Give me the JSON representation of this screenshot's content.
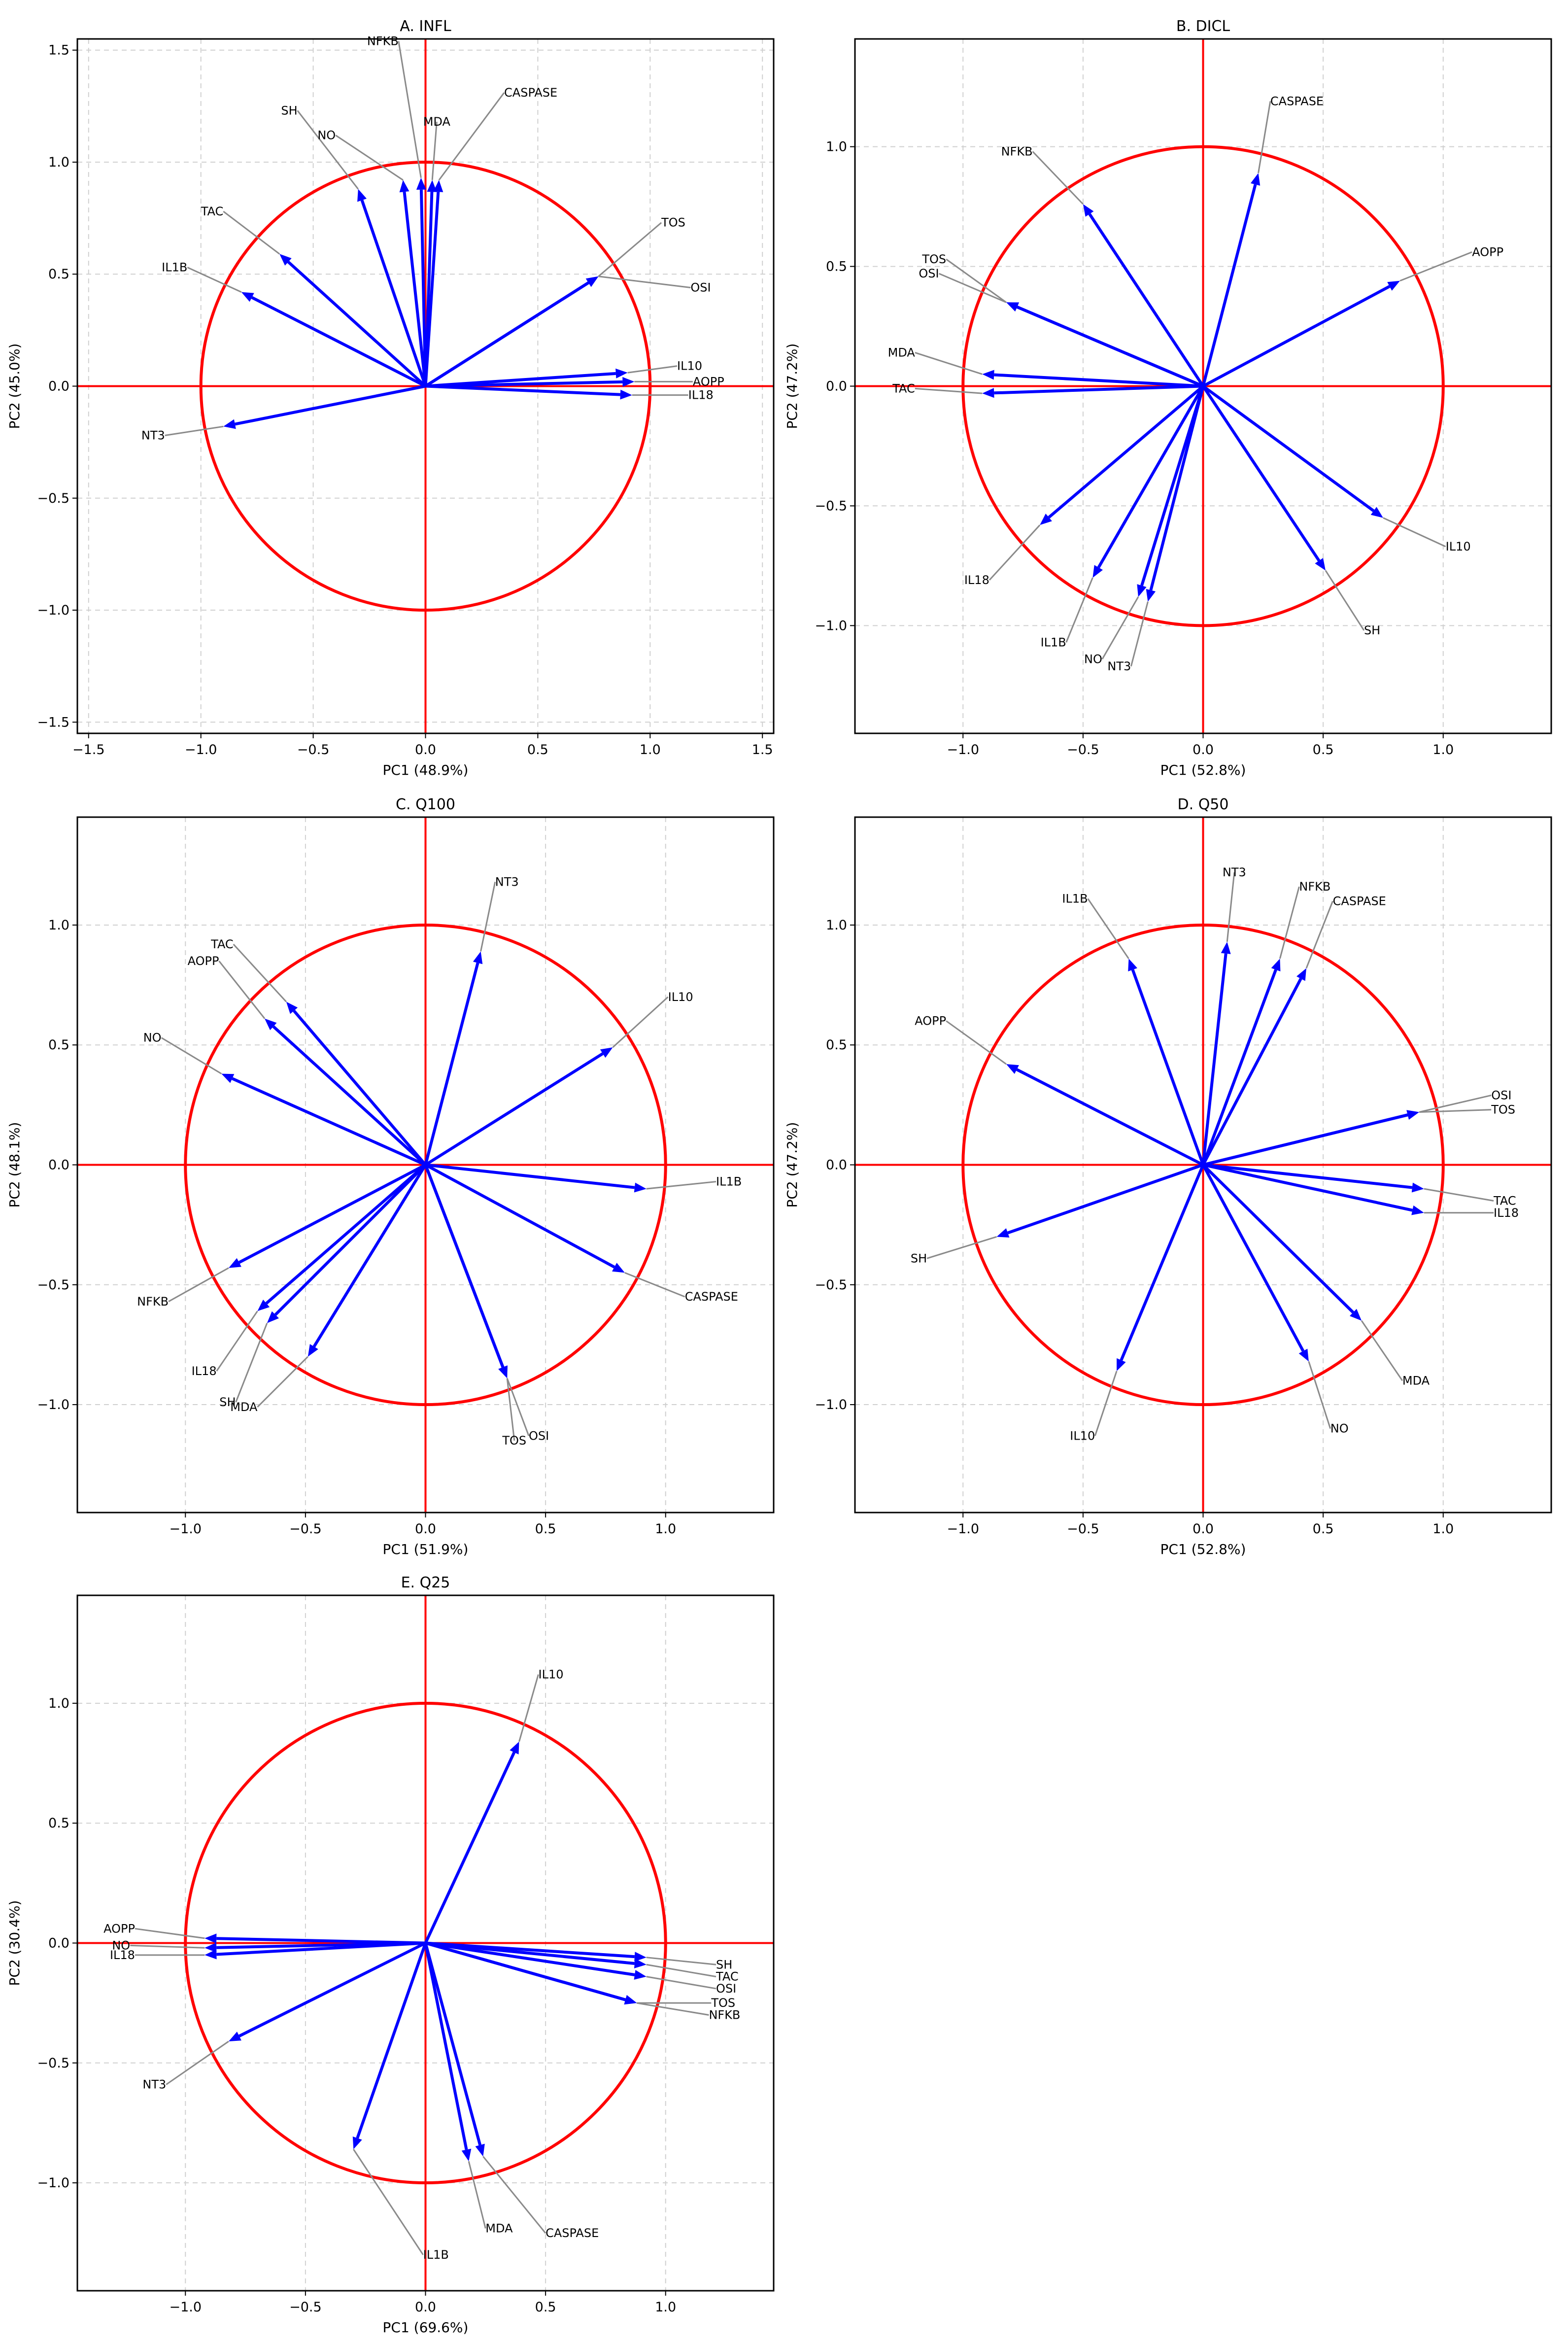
{
  "chart_data": [
    {
      "type": "scatter",
      "title": "A. INFL",
      "xlabel": "PC1 (48.9%)",
      "ylabel": "PC2 (45.0%)",
      "xlim": [
        -1.55,
        1.55
      ],
      "ylim": [
        -1.55,
        1.55
      ],
      "xticks": [
        -1.5,
        -1.0,
        -0.5,
        0.0,
        0.5,
        1.0,
        1.5
      ],
      "yticks": [
        -1.5,
        -1.0,
        -0.5,
        0.0,
        0.5,
        1.0,
        1.5
      ],
      "grid": true,
      "loadings": [
        {
          "name": "NFKB",
          "x": -0.02,
          "y": 0.93,
          "lx": -0.12,
          "ly": 1.54
        },
        {
          "name": "MDA",
          "x": 0.03,
          "y": 0.92,
          "lx": 0.05,
          "ly": 1.18
        },
        {
          "name": "CASPASE",
          "x": 0.06,
          "y": 0.92,
          "lx": 0.35,
          "ly": 1.31
        },
        {
          "name": "SH",
          "x": -0.3,
          "y": 0.88,
          "lx": -0.57,
          "ly": 1.23
        },
        {
          "name": "NO",
          "x": -0.1,
          "y": 0.92,
          "lx": -0.4,
          "ly": 1.12
        },
        {
          "name": "TAC",
          "x": -0.65,
          "y": 0.59,
          "lx": -0.9,
          "ly": 0.78
        },
        {
          "name": "IL1B",
          "x": -0.82,
          "y": 0.42,
          "lx": -1.06,
          "ly": 0.53
        },
        {
          "name": "TOS",
          "x": 0.77,
          "y": 0.49,
          "lx": 1.05,
          "ly": 0.73
        },
        {
          "name": "OSI",
          "x": 0.77,
          "y": 0.49,
          "lx": 1.18,
          "ly": 0.44
        },
        {
          "name": "IL10",
          "x": 0.9,
          "y": 0.06,
          "lx": 1.12,
          "ly": 0.09
        },
        {
          "name": "AOPP",
          "x": 0.93,
          "y": 0.02,
          "lx": 1.19,
          "ly": 0.02
        },
        {
          "name": "IL18",
          "x": 0.92,
          "y": -0.04,
          "lx": 1.17,
          "ly": -0.04
        },
        {
          "name": "NT3",
          "x": -0.9,
          "y": -0.18,
          "lx": -1.16,
          "ly": -0.22
        }
      ]
    },
    {
      "type": "scatter",
      "title": "B. DICL",
      "xlabel": "PC1 (52.8%)",
      "ylabel": "PC2 (47.2%)",
      "xlim": [
        -1.45,
        1.45
      ],
      "ylim": [
        -1.45,
        1.45
      ],
      "xticks": [
        -1.0,
        -0.5,
        0.0,
        0.5,
        1.0
      ],
      "yticks": [
        -1.0,
        -0.5,
        0.0,
        0.5,
        1.0
      ],
      "grid": true,
      "loadings": [
        {
          "name": "CASPASE",
          "x": 0.23,
          "y": 0.89,
          "lx": 0.28,
          "ly": 1.19
        },
        {
          "name": "NFKB",
          "x": -0.5,
          "y": 0.76,
          "lx": -0.71,
          "ly": 0.98
        },
        {
          "name": "AOPP",
          "x": 0.82,
          "y": 0.44,
          "lx": 1.12,
          "ly": 0.56
        },
        {
          "name": "TOS",
          "x": -0.82,
          "y": 0.35,
          "lx": -1.07,
          "ly": 0.53
        },
        {
          "name": "OSI",
          "x": -0.82,
          "y": 0.35,
          "lx": -1.1,
          "ly": 0.47
        },
        {
          "name": "MDA",
          "x": -0.92,
          "y": 0.05,
          "lx": -1.2,
          "ly": 0.14
        },
        {
          "name": "TAC",
          "x": -0.92,
          "y": -0.03,
          "lx": -1.2,
          "ly": -0.01
        },
        {
          "name": "IL10",
          "x": 0.75,
          "y": -0.55,
          "lx": 1.01,
          "ly": -0.67
        },
        {
          "name": "SH",
          "x": 0.51,
          "y": -0.77,
          "lx": 0.67,
          "ly": -1.02
        },
        {
          "name": "IL18",
          "x": -0.68,
          "y": -0.58,
          "lx": -0.89,
          "ly": -0.81
        },
        {
          "name": "IL1B",
          "x": -0.46,
          "y": -0.8,
          "lx": -0.57,
          "ly": -1.07
        },
        {
          "name": "NO",
          "x": -0.27,
          "y": -0.88,
          "lx": -0.42,
          "ly": -1.14
        },
        {
          "name": "NT3",
          "x": -0.23,
          "y": -0.9,
          "lx": -0.3,
          "ly": -1.17
        }
      ]
    },
    {
      "type": "scatter",
      "title": "C. Q100",
      "xlabel": "PC1 (51.9%)",
      "ylabel": "PC2 (48.1%)",
      "xlim": [
        -1.45,
        1.45
      ],
      "ylim": [
        -1.45,
        1.45
      ],
      "xticks": [
        -1.0,
        -0.5,
        0.0,
        0.5,
        1.0
      ],
      "yticks": [
        -1.0,
        -0.5,
        0.0,
        0.5,
        1.0
      ],
      "grid": true,
      "loadings": [
        {
          "name": "NT3",
          "x": 0.23,
          "y": 0.89,
          "lx": 0.29,
          "ly": 1.18
        },
        {
          "name": "TAC",
          "x": -0.58,
          "y": 0.68,
          "lx": -0.8,
          "ly": 0.92
        },
        {
          "name": "AOPP",
          "x": -0.67,
          "y": 0.61,
          "lx": -0.86,
          "ly": 0.85
        },
        {
          "name": "IL10",
          "x": 0.78,
          "y": 0.49,
          "lx": 1.01,
          "ly": 0.7
        },
        {
          "name": "NO",
          "x": -0.85,
          "y": 0.38,
          "lx": -1.1,
          "ly": 0.53
        },
        {
          "name": "IL1B",
          "x": 0.92,
          "y": -0.1,
          "lx": 1.21,
          "ly": -0.07
        },
        {
          "name": "CASPASE",
          "x": 0.83,
          "y": -0.45,
          "lx": 1.08,
          "ly": -0.55
        },
        {
          "name": "NFKB",
          "x": -0.82,
          "y": -0.43,
          "lx": -1.07,
          "ly": -0.57
        },
        {
          "name": "IL18",
          "x": -0.7,
          "y": -0.61,
          "lx": -0.87,
          "ly": -0.86
        },
        {
          "name": "SH",
          "x": -0.66,
          "y": -0.66,
          "lx": -0.79,
          "ly": -0.99
        },
        {
          "name": "MDA",
          "x": -0.49,
          "y": -0.8,
          "lx": -0.7,
          "ly": -1.01
        },
        {
          "name": "TOS",
          "x": 0.34,
          "y": -0.89,
          "lx": 0.37,
          "ly": -1.15
        },
        {
          "name": "OSI",
          "x": 0.34,
          "y": -0.89,
          "lx": 0.43,
          "ly": -1.13
        }
      ]
    },
    {
      "type": "scatter",
      "title": "D. Q50",
      "xlabel": "PC1 (52.8%)",
      "ylabel": "PC2 (47.2%)",
      "xlim": [
        -1.45,
        1.45
      ],
      "ylim": [
        -1.45,
        1.45
      ],
      "xticks": [
        -1.0,
        -0.5,
        0.0,
        0.5,
        1.0
      ],
      "yticks": [
        -1.0,
        -0.5,
        0.0,
        0.5,
        1.0
      ],
      "grid": true,
      "loadings": [
        {
          "name": "NT3",
          "x": 0.1,
          "y": 0.93,
          "lx": 0.13,
          "ly": 1.22
        },
        {
          "name": "NFKB",
          "x": 0.32,
          "y": 0.86,
          "lx": 0.4,
          "ly": 1.16
        },
        {
          "name": "CASPASE",
          "x": 0.43,
          "y": 0.82,
          "lx": 0.54,
          "ly": 1.1
        },
        {
          "name": "IL1B",
          "x": -0.31,
          "y": 0.86,
          "lx": -0.48,
          "ly": 1.11
        },
        {
          "name": "AOPP",
          "x": -0.82,
          "y": 0.42,
          "lx": -1.07,
          "ly": 0.6
        },
        {
          "name": "OSI",
          "x": 0.9,
          "y": 0.22,
          "lx": 1.2,
          "ly": 0.29
        },
        {
          "name": "TOS",
          "x": 0.9,
          "y": 0.22,
          "lx": 1.2,
          "ly": 0.23
        },
        {
          "name": "TAC",
          "x": 0.92,
          "y": -0.1,
          "lx": 1.21,
          "ly": -0.15
        },
        {
          "name": "IL18",
          "x": 0.92,
          "y": -0.2,
          "lx": 1.21,
          "ly": -0.2
        },
        {
          "name": "SH",
          "x": -0.86,
          "y": -0.3,
          "lx": -1.15,
          "ly": -0.39
        },
        {
          "name": "MDA",
          "x": 0.66,
          "y": -0.65,
          "lx": 0.83,
          "ly": -0.9
        },
        {
          "name": "NO",
          "x": 0.44,
          "y": -0.82,
          "lx": 0.53,
          "ly": -1.1
        },
        {
          "name": "IL10",
          "x": -0.36,
          "y": -0.86,
          "lx": -0.45,
          "ly": -1.13
        }
      ]
    },
    {
      "type": "scatter",
      "title": "E. Q25",
      "xlabel": "PC1 (69.6%)",
      "ylabel": "PC2 (30.4%)",
      "xlim": [
        -1.45,
        1.45
      ],
      "ylim": [
        -1.45,
        1.45
      ],
      "xticks": [
        -1.0,
        -0.5,
        0.0,
        0.5,
        1.0
      ],
      "yticks": [
        -1.0,
        -0.5,
        0.0,
        0.5,
        1.0
      ],
      "grid": true,
      "loadings": [
        {
          "name": "IL10",
          "x": 0.39,
          "y": 0.84,
          "lx": 0.47,
          "ly": 1.12
        },
        {
          "name": "AOPP",
          "x": -0.92,
          "y": 0.02,
          "lx": -1.21,
          "ly": 0.06
        },
        {
          "name": "NO",
          "x": -0.92,
          "y": -0.02,
          "lx": -1.23,
          "ly": -0.01
        },
        {
          "name": "IL18",
          "x": -0.92,
          "y": -0.05,
          "lx": -1.21,
          "ly": -0.05
        },
        {
          "name": "SH",
          "x": 0.92,
          "y": -0.06,
          "lx": 1.21,
          "ly": -0.09
        },
        {
          "name": "TAC",
          "x": 0.92,
          "y": -0.09,
          "lx": 1.21,
          "ly": -0.14
        },
        {
          "name": "OSI",
          "x": 0.92,
          "y": -0.14,
          "lx": 1.21,
          "ly": -0.19
        },
        {
          "name": "TOS",
          "x": 0.88,
          "y": -0.25,
          "lx": 1.19,
          "ly": -0.25
        },
        {
          "name": "NFKB",
          "x": 0.88,
          "y": -0.25,
          "lx": 1.18,
          "ly": -0.3
        },
        {
          "name": "NT3",
          "x": -0.82,
          "y": -0.41,
          "lx": -1.08,
          "ly": -0.59
        },
        {
          "name": "IL1B",
          "x": -0.3,
          "y": -0.86,
          "lx": -0.01,
          "ly": -1.3
        },
        {
          "name": "MDA",
          "x": 0.18,
          "y": -0.91,
          "lx": 0.25,
          "ly": -1.19
        },
        {
          "name": "CASPASE",
          "x": 0.24,
          "y": -0.89,
          "lx": 0.5,
          "ly": -1.21
        }
      ]
    }
  ]
}
